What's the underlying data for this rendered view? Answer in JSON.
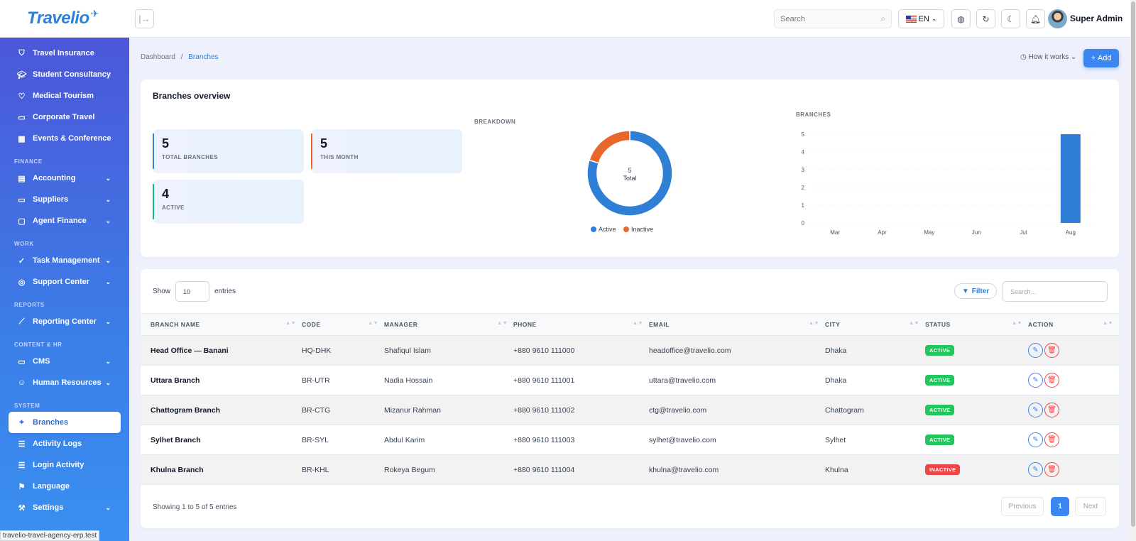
{
  "header": {
    "logo_text": "Travelio",
    "search_placeholder": "Search",
    "lang_label": "EN",
    "user_name": "Super Admin"
  },
  "sidebar": {
    "top_items": [
      {
        "label": "Travel Insurance",
        "icon": "shield-icon"
      },
      {
        "label": "Student Consultancy",
        "icon": "graduation-icon"
      },
      {
        "label": "Medical Tourism",
        "icon": "heart-icon"
      },
      {
        "label": "Corporate Travel",
        "icon": "briefcase-icon"
      },
      {
        "label": "Events & Conference",
        "icon": "calendar-icon"
      }
    ],
    "sections": [
      {
        "title": "FINANCE",
        "items": [
          {
            "label": "Accounting",
            "icon": "ledger-icon",
            "expandable": true
          },
          {
            "label": "Suppliers",
            "icon": "briefcase-icon",
            "expandable": true
          },
          {
            "label": "Agent Finance",
            "icon": "wallet-icon",
            "expandable": true
          }
        ]
      },
      {
        "title": "WORK",
        "items": [
          {
            "label": "Task Management",
            "icon": "check-circle-icon",
            "expandable": true
          },
          {
            "label": "Support Center",
            "icon": "lifebuoy-icon",
            "expandable": true
          }
        ]
      },
      {
        "title": "REPORTS",
        "items": [
          {
            "label": "Reporting Center",
            "icon": "trend-icon",
            "expandable": true
          }
        ]
      },
      {
        "title": "CONTENT & HR",
        "items": [
          {
            "label": "CMS",
            "icon": "monitor-icon",
            "expandable": true
          },
          {
            "label": "Human Resources",
            "icon": "users-icon",
            "expandable": true
          }
        ]
      },
      {
        "title": "SYSTEM",
        "items": [
          {
            "label": "Branches",
            "icon": "map-pin-icon",
            "active": true
          },
          {
            "label": "Activity Logs",
            "icon": "list-icon"
          },
          {
            "label": "Login Activity",
            "icon": "list-icon"
          },
          {
            "label": "Language",
            "icon": "flag-icon"
          },
          {
            "label": "Settings",
            "icon": "wrench-icon",
            "expandable": true
          }
        ]
      }
    ]
  },
  "breadcrumb": {
    "root": "Dashboard",
    "sep": "/",
    "current": "Branches"
  },
  "actions": {
    "how_it_works": "How it works",
    "add": "Add"
  },
  "overview": {
    "title": "Branches overview",
    "stats": [
      {
        "value": "5",
        "label": "TOTAL BRANCHES",
        "accent": "#2f7fd6"
      },
      {
        "value": "5",
        "label": "THIS MONTH",
        "accent": "#e8672d"
      },
      {
        "value": "4",
        "label": "ACTIVE",
        "accent": "#10b981"
      }
    ],
    "breakdown_label": "BREAKDOWN",
    "branches_label": "BRANCHES"
  },
  "chart_data": [
    {
      "type": "pie",
      "donut": true,
      "center_value": "5",
      "center_label": "Total",
      "slices": [
        {
          "name": "Active",
          "value": 4,
          "color": "#2f7fd6"
        },
        {
          "name": "Inactive",
          "value": 1,
          "color": "#e8672d"
        }
      ],
      "legend": "bottom"
    },
    {
      "type": "bar",
      "categories": [
        "Mar",
        "Apr",
        "May",
        "Jun",
        "Jul",
        "Aug"
      ],
      "values": [
        0,
        0,
        0,
        0,
        0,
        5
      ],
      "ylim": [
        0,
        5
      ],
      "yticks": [
        0,
        1,
        2,
        3,
        4,
        5
      ],
      "color": "#2f7fd6",
      "grid": true
    }
  ],
  "table": {
    "show_label": "Show",
    "entries_value": "10",
    "entries_label": "entries",
    "filter_label": "Filter",
    "search_placeholder": "Search...",
    "columns": [
      "BRANCH NAME",
      "CODE",
      "MANAGER",
      "PHONE",
      "EMAIL",
      "CITY",
      "STATUS",
      "ACTION"
    ],
    "rows": [
      {
        "name": "Head Office — Banani",
        "code": "HQ-DHK",
        "manager": "Shafiqul Islam",
        "phone": "+880 9610 111000",
        "email": "headoffice@travelio.com",
        "city": "Dhaka",
        "status": "ACTIVE"
      },
      {
        "name": "Uttara Branch",
        "code": "BR-UTR",
        "manager": "Nadia Hossain",
        "phone": "+880 9610 111001",
        "email": "uttara@travelio.com",
        "city": "Dhaka",
        "status": "ACTIVE"
      },
      {
        "name": "Chattogram Branch",
        "code": "BR-CTG",
        "manager": "Mizanur Rahman",
        "phone": "+880 9610 111002",
        "email": "ctg@travelio.com",
        "city": "Chattogram",
        "status": "ACTIVE"
      },
      {
        "name": "Sylhet Branch",
        "code": "BR-SYL",
        "manager": "Abdul Karim",
        "phone": "+880 9610 111003",
        "email": "sylhet@travelio.com",
        "city": "Sylhet",
        "status": "ACTIVE"
      },
      {
        "name": "Khulna Branch",
        "code": "BR-KHL",
        "manager": "Rokeya Begum",
        "phone": "+880 9610 111004",
        "email": "khulna@travelio.com",
        "city": "Khulna",
        "status": "INACTIVE"
      }
    ],
    "showing_text": "Showing 1 to 5 of 5 entries",
    "pager": {
      "prev": "Previous",
      "current": "1",
      "next": "Next"
    }
  },
  "status_url": "travelio-travel-agency-erp.test"
}
